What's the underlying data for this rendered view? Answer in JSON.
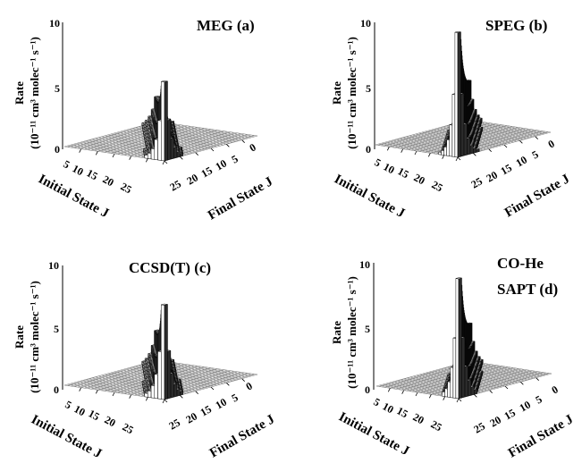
{
  "chart_data": [
    {
      "type": "3d-bar",
      "title": "MEG (a)",
      "zlabel_line1": "Rate",
      "zlabel_line2": "(10⁻¹¹ cm³ molec⁻¹ s⁻¹)",
      "xlabel": "Initial State J",
      "ylabel": "Final State J",
      "z_ticks": [
        "0",
        "5",
        "10"
      ],
      "x_ticks": [
        "5",
        "10",
        "15",
        "20",
        "25"
      ],
      "y_ticks": [
        "0",
        "5",
        "10",
        "15",
        "20",
        "25"
      ],
      "zlim": [
        0,
        10
      ],
      "x_range": [
        0,
        29
      ],
      "y_range": [
        0,
        29
      ],
      "peak_rate": 6.4,
      "peak_J": 0
    },
    {
      "type": "3d-bar",
      "title": "SPEG (b)",
      "zlabel_line1": "Rate",
      "zlabel_line2": "(10⁻¹¹ cm³ molec⁻¹ s⁻¹)",
      "xlabel": "Initial State J",
      "ylabel": "Final State J",
      "z_ticks": [
        "0",
        "5",
        "10"
      ],
      "x_ticks": [
        "5",
        "10",
        "15",
        "20",
        "25"
      ],
      "y_ticks": [
        "0",
        "5",
        "10",
        "15",
        "20",
        "25"
      ],
      "zlim": [
        0,
        10
      ],
      "x_range": [
        0,
        29
      ],
      "y_range": [
        0,
        29
      ],
      "peak_rate": 10.2,
      "peak_J": 0
    },
    {
      "type": "3d-bar",
      "title": "CCSD(T) (c)",
      "zlabel_line1": "Rate",
      "zlabel_line2": "(10⁻¹¹ cm³ molec⁻¹ s⁻¹)",
      "xlabel": "Initial State J",
      "ylabel": "Final State J",
      "z_ticks": [
        "0",
        "5",
        "10"
      ],
      "x_ticks": [
        "5",
        "10",
        "15",
        "20",
        "25"
      ],
      "y_ticks": [
        "0",
        "5",
        "10",
        "15",
        "20",
        "25"
      ],
      "zlim": [
        0,
        10
      ],
      "x_range": [
        0,
        29
      ],
      "y_range": [
        0,
        29
      ],
      "peak_rate": 7.8,
      "peak_J": 0
    },
    {
      "type": "3d-bar",
      "title": "CO-He",
      "title_line2": "SAPT (d)",
      "zlabel_line1": "Rate",
      "zlabel_line2": "(10⁻¹¹ cm³ molec⁻¹ s⁻¹)",
      "xlabel": "Initial State J",
      "ylabel": "Final State J",
      "z_ticks": [
        "0",
        "5",
        "10"
      ],
      "x_ticks": [
        "5",
        "10",
        "15",
        "20",
        "25"
      ],
      "y_ticks": [
        "0",
        "5",
        "10",
        "15",
        "20",
        "25"
      ],
      "zlim": [
        0,
        10
      ],
      "x_range": [
        0,
        29
      ],
      "y_range": [
        0,
        29
      ],
      "peak_rate": 9.8,
      "peak_J": 0
    }
  ]
}
